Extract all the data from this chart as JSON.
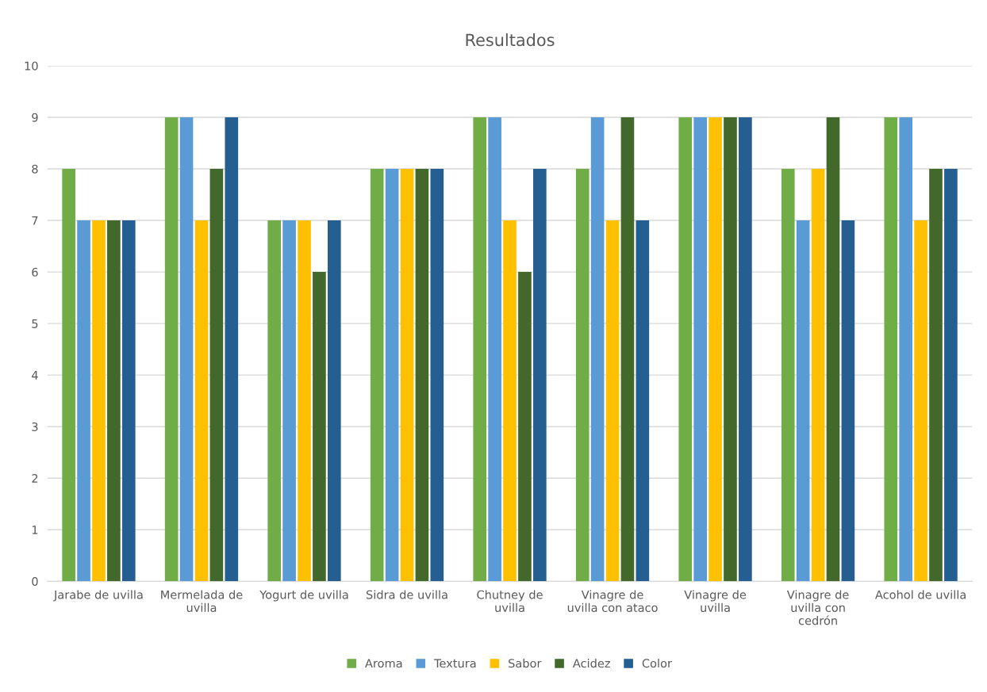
{
  "chart_data": {
    "type": "bar",
    "title": "Resultados",
    "categories": [
      "Jarabe de uvilla",
      "Mermelada de uvilla",
      "Yogurt de uvilla",
      "Sidra de uvilla",
      "Chutney de uvilla",
      "Vinagre de uvilla con ataco",
      "Vinagre de uvilla",
      "Vinagre de uvilla con cedrón",
      "Acohol de uvilla"
    ],
    "series": [
      {
        "name": "Aroma",
        "color": "#70ad47",
        "values": [
          8,
          9,
          7,
          8,
          9,
          8,
          9,
          8,
          9
        ]
      },
      {
        "name": "Textura",
        "color": "#5b9bd5",
        "values": [
          7,
          9,
          7,
          8,
          9,
          9,
          9,
          7,
          9
        ]
      },
      {
        "name": "Sabor",
        "color": "#ffc000",
        "values": [
          7,
          7,
          7,
          8,
          7,
          7,
          9,
          8,
          7
        ]
      },
      {
        "name": "Acidez",
        "color": "#43682b",
        "values": [
          7,
          8,
          6,
          8,
          6,
          9,
          9,
          9,
          8
        ]
      },
      {
        "name": "Color",
        "color": "#255e91",
        "values": [
          7,
          9,
          7,
          8,
          8,
          7,
          9,
          7,
          8
        ]
      }
    ],
    "ylim": [
      0,
      10
    ],
    "yticks": [
      0,
      1,
      2,
      3,
      4,
      5,
      6,
      7,
      8,
      9,
      10
    ],
    "grid": "y",
    "legend": "bottom"
  }
}
